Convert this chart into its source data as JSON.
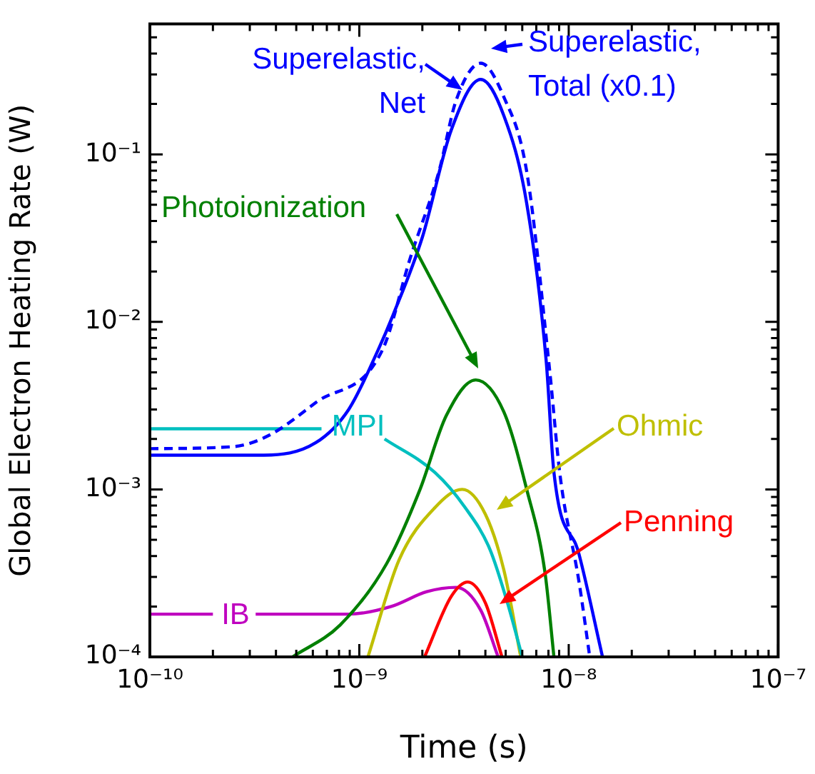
{
  "chart_data": {
    "type": "line",
    "xlabel": "Time (s)",
    "ylabel": "Global Electron Heating Rate (W)",
    "log": "xy",
    "grid": false,
    "marker": "none",
    "xlim": [
      1e-10,
      1e-07
    ],
    "xticks": [
      {
        "value": 1e-10,
        "label": "10⁻¹⁰"
      },
      {
        "value": 2e-10,
        "label": null
      },
      {
        "value": 3e-10,
        "label": null
      },
      {
        "value": 4e-10,
        "label": null
      },
      {
        "value": 5e-10,
        "label": null
      },
      {
        "value": 6e-10,
        "label": null
      },
      {
        "value": 7e-10,
        "label": null
      },
      {
        "value": 8e-10,
        "label": null
      },
      {
        "value": 9e-10,
        "label": null
      },
      {
        "value": 1e-09,
        "label": "10⁻⁹"
      },
      {
        "value": 2e-09,
        "label": null
      },
      {
        "value": 3e-09,
        "label": null
      },
      {
        "value": 4e-09,
        "label": null
      },
      {
        "value": 5e-09,
        "label": null
      },
      {
        "value": 6e-09,
        "label": null
      },
      {
        "value": 7e-09,
        "label": null
      },
      {
        "value": 8e-09,
        "label": null
      },
      {
        "value": 9e-09,
        "label": null
      },
      {
        "value": 1e-08,
        "label": "10⁻⁸"
      },
      {
        "value": 2e-08,
        "label": null
      },
      {
        "value": 3e-08,
        "label": null
      },
      {
        "value": 4e-08,
        "label": null
      },
      {
        "value": 5e-08,
        "label": null
      },
      {
        "value": 6e-08,
        "label": null
      },
      {
        "value": 7e-08,
        "label": null
      },
      {
        "value": 8e-08,
        "label": null
      },
      {
        "value": 9e-08,
        "label": null
      },
      {
        "value": 1e-07,
        "label": "10⁻⁷"
      }
    ],
    "ylim": [
      0.0001,
      0.6
    ],
    "yticks": [
      {
        "value": 0.0001,
        "label": "10⁻⁴"
      },
      {
        "value": 0.0002,
        "label": null
      },
      {
        "value": 0.0003,
        "label": null
      },
      {
        "value": 0.0004,
        "label": null
      },
      {
        "value": 0.0005,
        "label": null
      },
      {
        "value": 0.0006,
        "label": null
      },
      {
        "value": 0.0007,
        "label": null
      },
      {
        "value": 0.0008,
        "label": null
      },
      {
        "value": 0.0009,
        "label": null
      },
      {
        "value": 0.001,
        "label": "10⁻³"
      },
      {
        "value": 0.002,
        "label": null
      },
      {
        "value": 0.003,
        "label": null
      },
      {
        "value": 0.004,
        "label": null
      },
      {
        "value": 0.005,
        "label": null
      },
      {
        "value": 0.006,
        "label": null
      },
      {
        "value": 0.007,
        "label": null
      },
      {
        "value": 0.008,
        "label": null
      },
      {
        "value": 0.009,
        "label": null
      },
      {
        "value": 0.01,
        "label": "10⁻²"
      },
      {
        "value": 0.02,
        "label": null
      },
      {
        "value": 0.03,
        "label": null
      },
      {
        "value": 0.04,
        "label": null
      },
      {
        "value": 0.05,
        "label": null
      },
      {
        "value": 0.06,
        "label": null
      },
      {
        "value": 0.07,
        "label": null
      },
      {
        "value": 0.08,
        "label": null
      },
      {
        "value": 0.09,
        "label": null
      },
      {
        "value": 0.1,
        "label": "10⁻¹"
      },
      {
        "value": 0.2,
        "label": null
      },
      {
        "value": 0.3,
        "label": null
      },
      {
        "value": 0.4,
        "label": null
      },
      {
        "value": 0.5,
        "label": null
      }
    ],
    "series": [
      {
        "name": "Superelastic, Net",
        "color": "#0000ff",
        "x": [
          1e-10,
          3.5e-10,
          6.2e-10,
          8.9e-10,
          1.23e-09,
          1.45e-09,
          2e-09,
          2.75e-09,
          3.8e-09,
          4.9e-09,
          6.3e-09,
          7.8e-09,
          8.5e-09,
          1.12e-08,
          1.45e-08
        ],
        "values": [
          0.0016,
          0.0016,
          0.0019,
          0.003,
          0.0068,
          0.011,
          0.032,
          0.14,
          0.28,
          0.17,
          0.051,
          0.0059,
          0.00126,
          0.00041,
          0.0001
        ]
      },
      {
        "name": "Superelastic, Total (x0.1)",
        "color": "#0000ff",
        "line_style": "dashed",
        "x": [
          1e-10,
          2.5e-10,
          3.7e-10,
          6.2e-10,
          1.29e-09,
          1.75e-09,
          2.4e-09,
          2.9e-09,
          3.8e-09,
          4.9e-09,
          6.3e-09,
          8.1e-09,
          9.1e-09,
          1.12e-08,
          1.26e-08
        ],
        "values": [
          0.00175,
          0.0018,
          0.0021,
          0.0033,
          0.0068,
          0.024,
          0.079,
          0.21,
          0.35,
          0.22,
          0.079,
          0.0052,
          0.0012,
          0.00028,
          0.0001
        ]
      },
      {
        "name": "Photoionization",
        "color": "#008000",
        "x": [
          4.8e-10,
          8.1e-10,
          1.35e-09,
          1.95e-09,
          2.6e-09,
          3.6e-09,
          4.9e-09,
          6.3e-09,
          7.7e-09,
          8.5e-09
        ],
        "values": [
          0.0001,
          0.000155,
          0.00036,
          0.001,
          0.00275,
          0.0045,
          0.0029,
          0.001,
          0.00032,
          0.0001
        ]
      },
      {
        "name": "MPI",
        "color": "#00bfbf",
        "x": [
          1e-10,
          6.6e-10,
          1e-09,
          1.32e-09,
          2.3e-09,
          3.2e-09,
          4.2e-09,
          5.1e-09,
          6e-09
        ],
        "values": [
          0.0023,
          0.0023,
          null,
          0.002,
          0.00126,
          0.00078,
          0.00044,
          0.00021,
          0.0001
        ]
      },
      {
        "name": "Ohmic",
        "color": "#bfbf00",
        "x": [
          1.1e-09,
          1.55e-09,
          2.3e-09,
          3.1e-09,
          4e-09,
          4.9e-09,
          5.9e-09
        ],
        "values": [
          0.0001,
          0.00038,
          0.00078,
          0.001,
          0.00071,
          0.00033,
          0.0001
        ]
      },
      {
        "name": "Penning",
        "color": "#ff0000",
        "x": [
          2.05e-09,
          2.75e-09,
          3.3e-09,
          4e-09,
          4.8e-09
        ],
        "values": [
          0.0001,
          0.00023,
          0.00028,
          0.00021,
          0.0001
        ]
      },
      {
        "name": "IB",
        "color": "#bf00bf",
        "x": [
          1e-10,
          2e-10,
          2.5e-10,
          3.2e-10,
          8.9e-10,
          1.42e-09,
          2.1e-09,
          2.9e-09,
          3.8e-09,
          4.6e-09
        ],
        "values": [
          0.00018,
          0.00018,
          null,
          0.00018,
          0.00018,
          0.0002,
          0.000245,
          0.00026,
          0.00019,
          0.0001
        ]
      }
    ]
  }
}
